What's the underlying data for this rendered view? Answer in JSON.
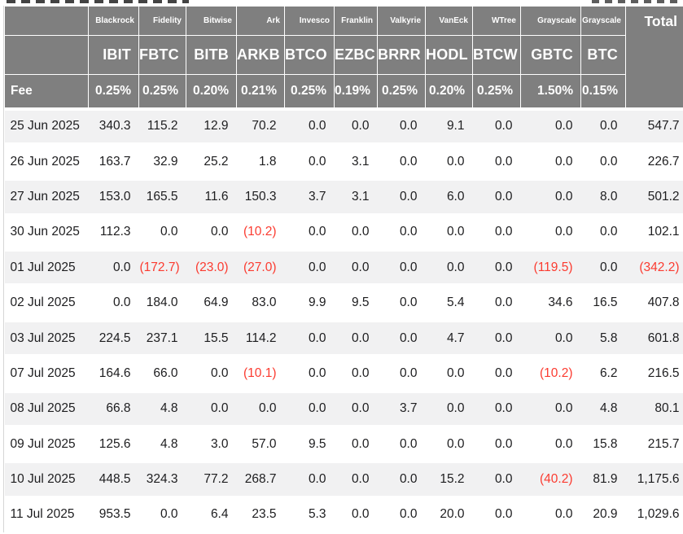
{
  "colors": {
    "header_bg": "#7f7f7f",
    "row_alt_bg": "#f1f1f2",
    "negative": "#fb3b30",
    "text_dark": "#1d1d1f",
    "header_text": "#ffffff"
  },
  "table": {
    "fee_label": "Fee",
    "total_label": "Total",
    "columns": [
      {
        "issuer": "Blackrock",
        "ticker": "IBIT",
        "fee": "0.25%"
      },
      {
        "issuer": "Fidelity",
        "ticker": "FBTC",
        "fee": "0.25%"
      },
      {
        "issuer": "Bitwise",
        "ticker": "BITB",
        "fee": "0.20%"
      },
      {
        "issuer": "Ark",
        "ticker": "ARKB",
        "fee": "0.21%"
      },
      {
        "issuer": "Invesco",
        "ticker": "BTCO",
        "fee": "0.25%"
      },
      {
        "issuer": "Franklin",
        "ticker": "EZBC",
        "fee": "0.19%"
      },
      {
        "issuer": "Valkyrie",
        "ticker": "BRRR",
        "fee": "0.25%"
      },
      {
        "issuer": "VanEck",
        "ticker": "HODL",
        "fee": "0.20%"
      },
      {
        "issuer": "WTree",
        "ticker": "BTCW",
        "fee": "0.25%"
      },
      {
        "issuer": "Grayscale",
        "ticker": "GBTC",
        "fee": "1.50%"
      },
      {
        "issuer": "Grayscale",
        "ticker": "BTC",
        "fee": "0.15%"
      }
    ],
    "rows": [
      {
        "date": "25 Jun 2025",
        "values": [
          "340.3",
          "115.2",
          "12.9",
          "70.2",
          "0.0",
          "0.0",
          "0.0",
          "9.1",
          "0.0",
          "0.0",
          "0.0"
        ],
        "total": "547.7"
      },
      {
        "date": "26 Jun 2025",
        "values": [
          "163.7",
          "32.9",
          "25.2",
          "1.8",
          "0.0",
          "3.1",
          "0.0",
          "0.0",
          "0.0",
          "0.0",
          "0.0"
        ],
        "total": "226.7"
      },
      {
        "date": "27 Jun 2025",
        "values": [
          "153.0",
          "165.5",
          "11.6",
          "150.3",
          "3.7",
          "3.1",
          "0.0",
          "6.0",
          "0.0",
          "0.0",
          "8.0"
        ],
        "total": "501.2"
      },
      {
        "date": "30 Jun 2025",
        "values": [
          "112.3",
          "0.0",
          "0.0",
          "(10.2)",
          "0.0",
          "0.0",
          "0.0",
          "0.0",
          "0.0",
          "0.0",
          "0.0"
        ],
        "total": "102.1"
      },
      {
        "date": "01 Jul 2025",
        "values": [
          "0.0",
          "(172.7)",
          "(23.0)",
          "(27.0)",
          "0.0",
          "0.0",
          "0.0",
          "0.0",
          "0.0",
          "(119.5)",
          "0.0"
        ],
        "total": "(342.2)"
      },
      {
        "date": "02 Jul 2025",
        "values": [
          "0.0",
          "184.0",
          "64.9",
          "83.0",
          "9.9",
          "9.5",
          "0.0",
          "5.4",
          "0.0",
          "34.6",
          "16.5"
        ],
        "total": "407.8"
      },
      {
        "date": "03 Jul 2025",
        "values": [
          "224.5",
          "237.1",
          "15.5",
          "114.2",
          "0.0",
          "0.0",
          "0.0",
          "4.7",
          "0.0",
          "0.0",
          "5.8"
        ],
        "total": "601.8"
      },
      {
        "date": "07 Jul 2025",
        "values": [
          "164.6",
          "66.0",
          "0.0",
          "(10.1)",
          "0.0",
          "0.0",
          "0.0",
          "0.0",
          "0.0",
          "(10.2)",
          "6.2"
        ],
        "total": "216.5"
      },
      {
        "date": "08 Jul 2025",
        "values": [
          "66.8",
          "4.8",
          "0.0",
          "0.0",
          "0.0",
          "0.0",
          "3.7",
          "0.0",
          "0.0",
          "0.0",
          "4.8"
        ],
        "total": "80.1"
      },
      {
        "date": "09 Jul 2025",
        "values": [
          "125.6",
          "4.8",
          "3.0",
          "57.0",
          "9.5",
          "0.0",
          "0.0",
          "0.0",
          "0.0",
          "0.0",
          "15.8"
        ],
        "total": "215.7"
      },
      {
        "date": "10 Jul 2025",
        "values": [
          "448.5",
          "324.3",
          "77.2",
          "268.7",
          "0.0",
          "0.0",
          "0.0",
          "15.2",
          "0.0",
          "(40.2)",
          "81.9"
        ],
        "total": "1,175.6"
      },
      {
        "date": "11 Jul 2025",
        "values": [
          "953.5",
          "0.0",
          "6.4",
          "23.5",
          "5.3",
          "0.0",
          "0.0",
          "20.0",
          "0.0",
          "0.0",
          "20.9"
        ],
        "total": "1,029.6"
      }
    ]
  }
}
